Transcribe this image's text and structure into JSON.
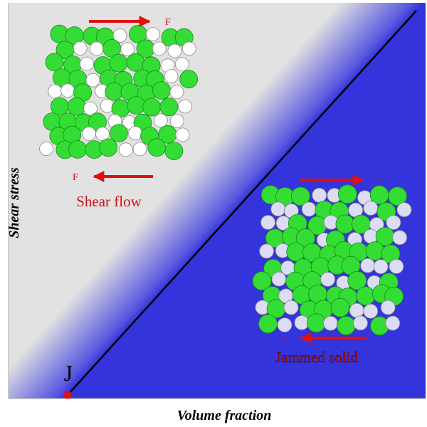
{
  "shear_flow": {
    "label": "Shear flow",
    "force_top": "F",
    "force_bottom": "F"
  },
  "jammed_solid": {
    "label": "Jammed solid",
    "force_top": "F",
    "force_bottom": "F"
  },
  "jamming_point": "J",
  "axes": {
    "y_label": "Shear stress",
    "x_label": "Volume fraction"
  }
}
